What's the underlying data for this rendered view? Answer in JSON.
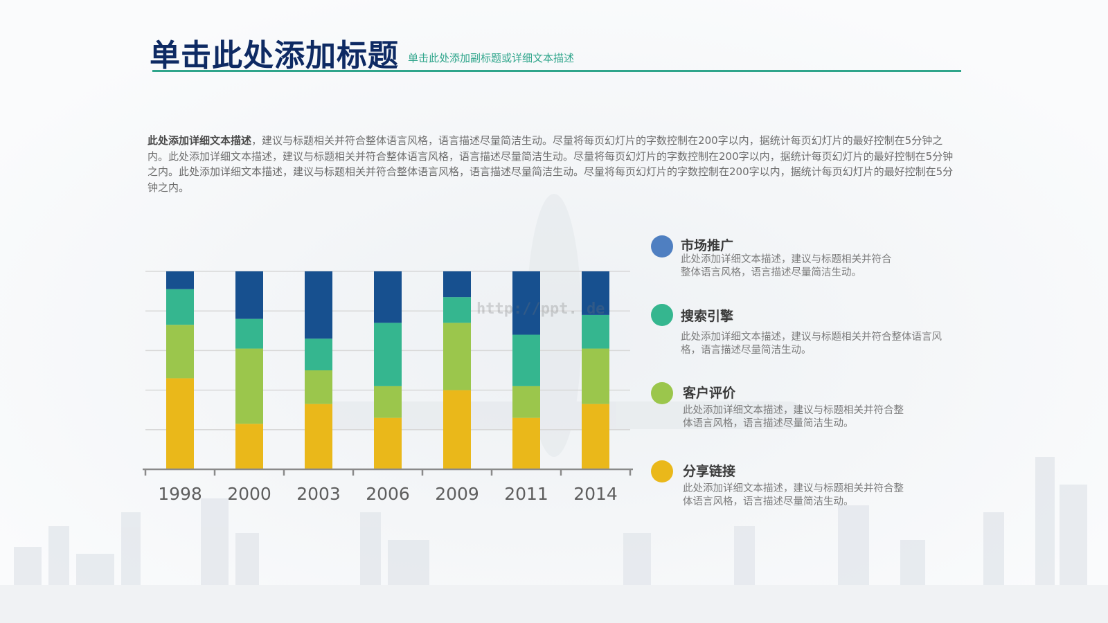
{
  "header": {
    "title": "单击此处添加标题",
    "subtitle": "单击此处添加副标题或详细文本描述"
  },
  "description": {
    "lead": "此处添加详细文本描述",
    "body": "，建议与标题相关并符合整体语言风格，语言描述尽量简洁生动。尽量将每页幻灯片的字数控制在200字以内，据统计每页幻灯片的最好控制在5分钟之内。此处添加详细文本描述，建议与标题相关并符合整体语言风格，语言描述尽量简洁生动。尽量将每页幻灯片的字数控制在200字以内，据统计每页幻灯片的最好控制在5分钟之内。此处添加详细文本描述，建议与标题相关并符合整体语言风格，语言描述尽量简洁生动。尽量将每页幻灯片的字数控制在200字以内，据统计每页幻灯片的最好控制在5分钟之内。"
  },
  "watermark": "http://ppt.    de",
  "legend": [
    {
      "title": "市场推广",
      "desc": "此处添加详细文本描述，建议与标题相关并符合整体语言风格，语言描述尽量简洁生动。",
      "color": "#4f7fc1"
    },
    {
      "title": "搜索引擎",
      "desc": "此处添加详细文本描述，建议与标题相关并符合整体语言风格，语言描述尽量简洁生动。",
      "color": "#35b68f"
    },
    {
      "title": "客户评价",
      "desc": "此处添加详细文本描述，建议与标题相关并符合整体语言风格，语言描述尽量简洁生动。",
      "color": "#9bc64c"
    },
    {
      "title": "分享链接",
      "desc": "此处添加详细文本描述，建议与标题相关并符合整体语言风格，语言描述尽量简洁生动。",
      "color": "#eab81a"
    }
  ],
  "chart_data": {
    "type": "bar",
    "stacked": true,
    "percent_stacked": true,
    "categories": [
      "1998",
      "2000",
      "2003",
      "2006",
      "2009",
      "2011",
      "2014"
    ],
    "series": [
      {
        "color": "#eab81a",
        "values": [
          46,
          23,
          33,
          26,
          40,
          26,
          33
        ]
      },
      {
        "color": "#9bc64c",
        "values": [
          27,
          38,
          17,
          16,
          34,
          16,
          28
        ]
      },
      {
        "color": "#35b68f",
        "values": [
          18,
          15,
          16,
          32,
          13,
          26,
          17
        ]
      },
      {
        "color": "#17508f",
        "values": [
          9,
          24,
          34,
          26,
          13,
          32,
          22
        ]
      }
    ],
    "ylim": [
      0,
      100
    ],
    "grid": true,
    "legend": "right"
  },
  "colors": {
    "title": "#0e2a63",
    "accent": "#2fa58b"
  }
}
